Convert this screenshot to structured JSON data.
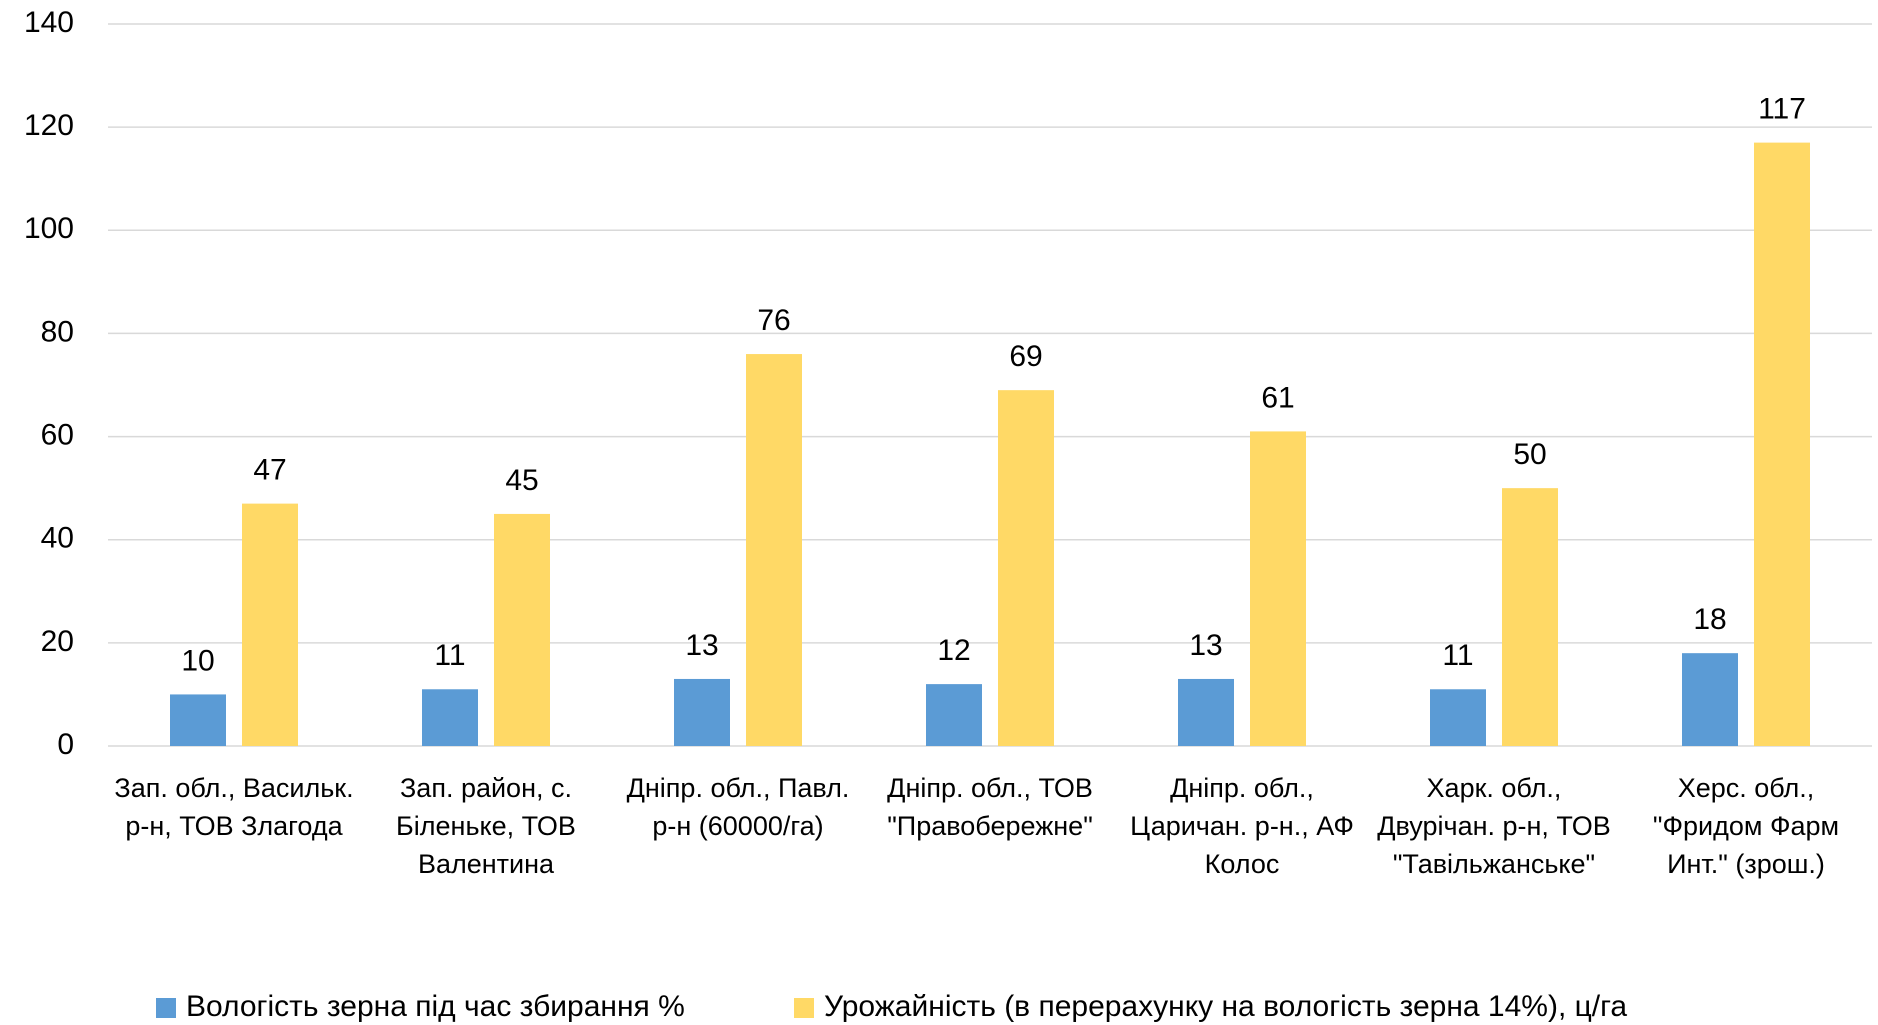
{
  "chart_data": {
    "type": "bar",
    "categories": [
      "Зап. обл., Васильк. р-н, ТОВ Злагода",
      "Зап. район, с. Біленьке, ТОВ Валентина",
      "Дніпр. обл., Павл. р-н (60000/га)",
      "Дніпр. обл., ТОВ \"Правобережне\"",
      "Дніпр. обл., Царичан. р-н., АФ Колос",
      "Харк. обл., Двурічан. р-н, ТОВ \"Тавільжанське\"",
      "Херс. обл., \"Фридом Фарм Инт.\" (зрош.)"
    ],
    "series": [
      {
        "name": "Вологість зерна під час збирання %",
        "color": "#5b9bd5",
        "values": [
          10,
          11,
          13,
          12,
          13,
          11,
          18
        ]
      },
      {
        "name": "Урожайність  (в перерахунку на вологість зерна 14%), ц/га",
        "color": "#ffd966",
        "values": [
          47,
          45,
          76,
          69,
          61,
          50,
          117
        ]
      }
    ],
    "ylim": [
      0,
      140
    ],
    "yticks": [
      0,
      20,
      40,
      60,
      80,
      100,
      120,
      140
    ],
    "grid": true,
    "legend": "bottom"
  }
}
